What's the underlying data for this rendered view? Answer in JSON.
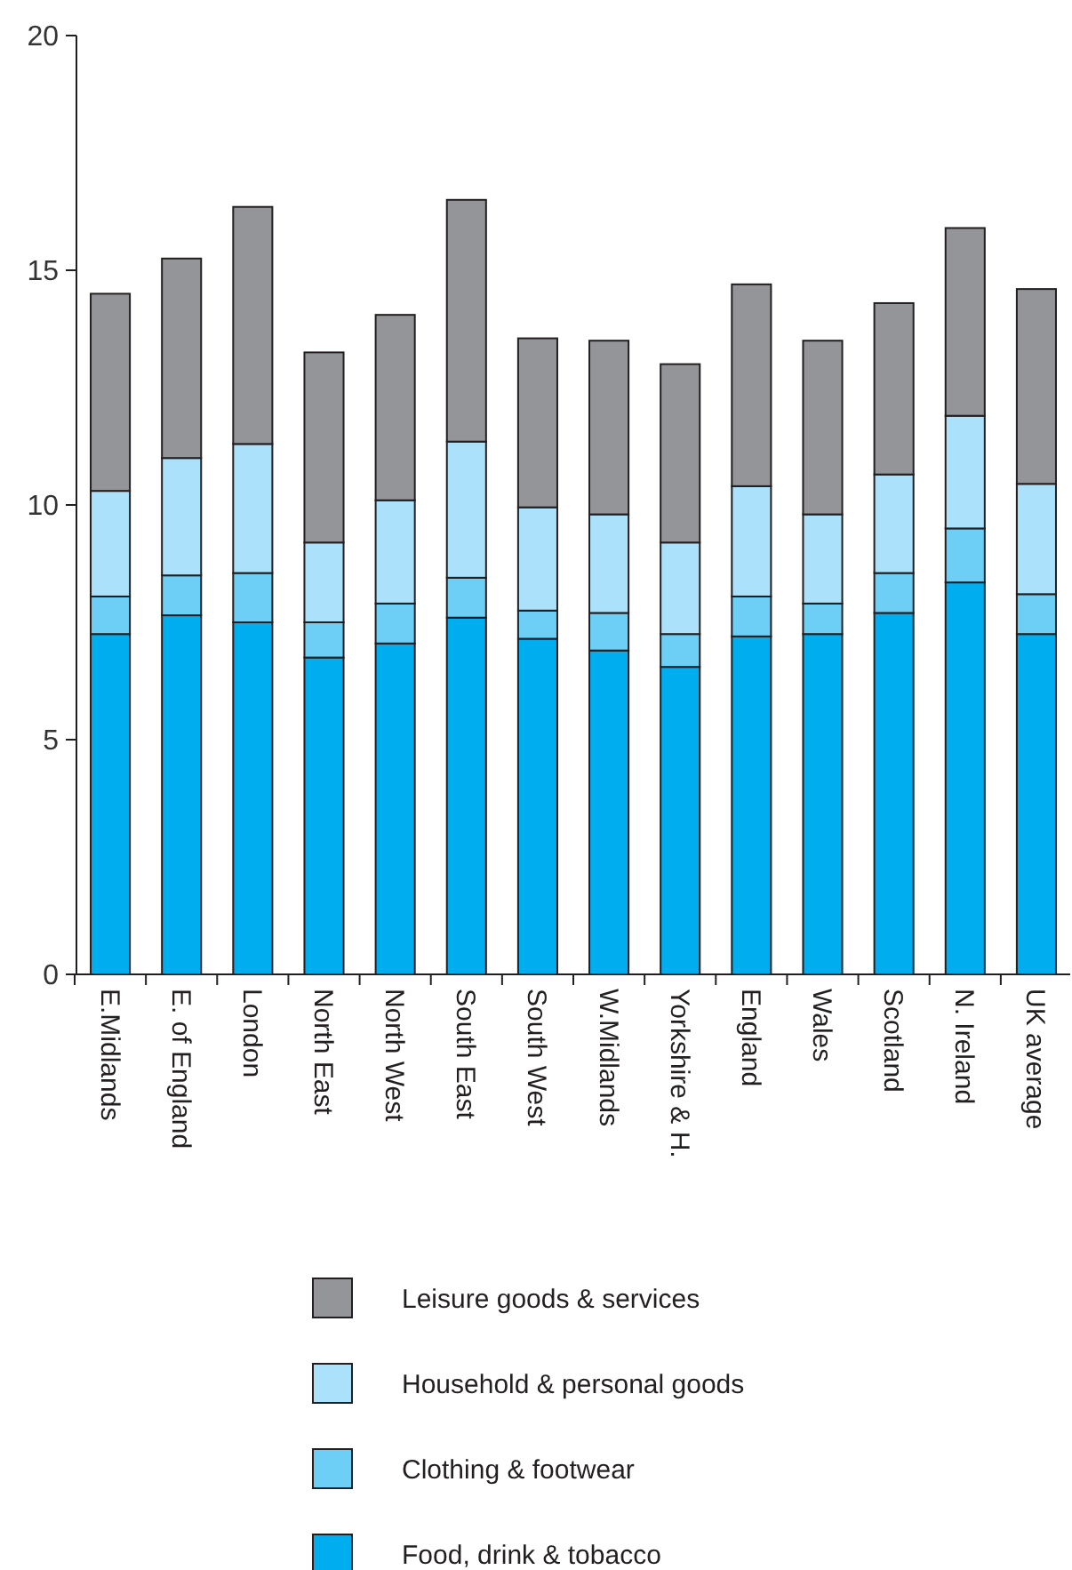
{
  "chart_data": {
    "type": "bar",
    "stacked": true,
    "legend": "bottom",
    "grid": false,
    "categories": [
      "E.Midlands",
      "E. of England",
      "London",
      "North East",
      "North West",
      "South East",
      "South West",
      "W.Midlands",
      "Yorkshire & H.",
      "England",
      "Wales",
      "Scotland",
      "N. Ireland",
      "UK average"
    ],
    "ylim": [
      0,
      20
    ],
    "yticks": [
      0,
      5,
      10,
      15,
      20
    ],
    "series": [
      {
        "name": "Food, drink & tobacco",
        "color": "#00adee",
        "values": [
          7.25,
          7.65,
          7.5,
          6.75,
          7.05,
          7.6,
          7.15,
          6.9,
          6.55,
          7.2,
          7.25,
          7.7,
          8.35,
          7.25
        ]
      },
      {
        "name": "Clothing & footwear",
        "color": "#6dcff6",
        "values": [
          0.8,
          0.85,
          1.05,
          0.75,
          0.85,
          0.85,
          0.6,
          0.8,
          0.7,
          0.85,
          0.65,
          0.85,
          1.15,
          0.85
        ]
      },
      {
        "name": "Household & personal goods",
        "color": "#abe1fa",
        "values": [
          2.25,
          2.5,
          2.75,
          1.7,
          2.2,
          2.9,
          2.2,
          2.1,
          1.95,
          2.35,
          1.9,
          2.1,
          2.4,
          2.35
        ]
      },
      {
        "name": "Leisure goods & services",
        "color": "#939598",
        "values": [
          4.2,
          4.25,
          5.05,
          4.05,
          3.95,
          5.15,
          3.6,
          3.7,
          3.8,
          4.3,
          3.7,
          3.65,
          4.0,
          4.15
        ]
      }
    ]
  }
}
